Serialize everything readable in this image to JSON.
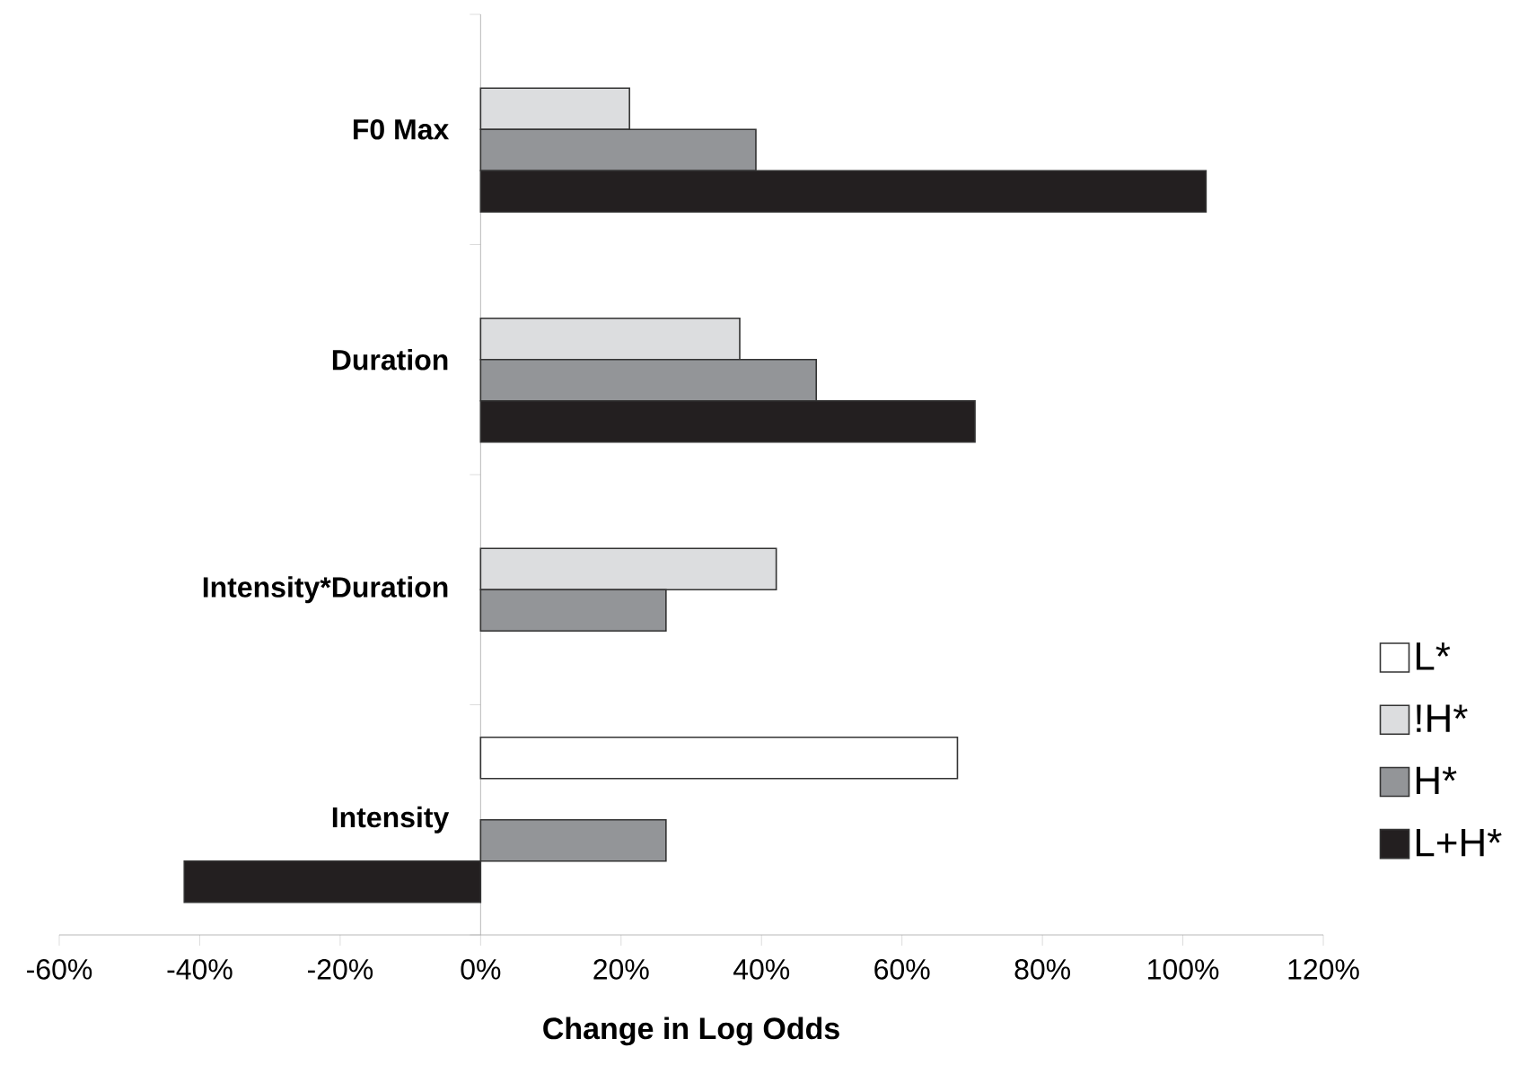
{
  "chart_data": {
    "type": "bar",
    "orientation": "horizontal",
    "xlabel": "Change in Log Odds",
    "categories": [
      "F0 Max",
      "Duration",
      "Intensity*Duration",
      "Intensity"
    ],
    "series": [
      {
        "name": "L*",
        "color": "#ffffff",
        "values": [
          null,
          null,
          null,
          67.9
        ]
      },
      {
        "name": "!H*",
        "color": "#dcdddf",
        "values": [
          21.2,
          36.9,
          42.1,
          null
        ]
      },
      {
        "name": "H*",
        "color": "#939598",
        "values": [
          39.2,
          47.8,
          26.4,
          26.4
        ]
      },
      {
        "name": "L+H*",
        "color": "#231f20",
        "values": [
          103.3,
          70.4,
          null,
          -42.2
        ]
      }
    ],
    "xlim": [
      -60,
      120
    ],
    "xticks": [
      {
        "value": -60,
        "label": "-60%"
      },
      {
        "value": -40,
        "label": "-40%"
      },
      {
        "value": -20,
        "label": "-20%"
      },
      {
        "value": 0,
        "label": "0%"
      },
      {
        "value": 20,
        "label": "20%"
      },
      {
        "value": 40,
        "label": "40%"
      },
      {
        "value": 60,
        "label": "60%"
      },
      {
        "value": 80,
        "label": "80%"
      },
      {
        "value": 100,
        "label": "100%"
      },
      {
        "value": 120,
        "label": "120%"
      }
    ],
    "legend": "right"
  }
}
